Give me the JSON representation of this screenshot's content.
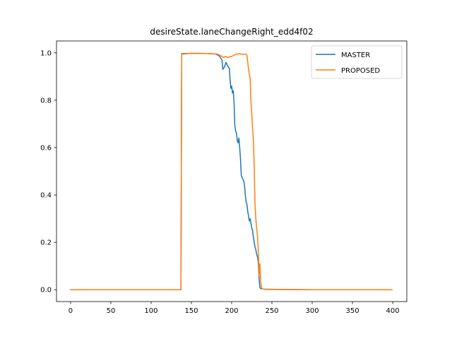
{
  "chart_data": {
    "type": "line",
    "title": "desireState.laneChangeRight_edd4f02",
    "xlabel": "",
    "ylabel": "",
    "xlim": [
      -17.5,
      417.5
    ],
    "ylim": [
      -0.05,
      1.05
    ],
    "xticks": [
      0,
      50,
      100,
      150,
      200,
      250,
      300,
      350,
      400
    ],
    "yticks": [
      0.0,
      0.2,
      0.4,
      0.6,
      0.8,
      1.0
    ],
    "xtick_labels": [
      "0",
      "50",
      "100",
      "150",
      "200",
      "250",
      "300",
      "350",
      "400"
    ],
    "ytick_labels": [
      "0.0",
      "0.2",
      "0.4",
      "0.6",
      "0.8",
      "1.0"
    ],
    "grid": false,
    "legend_position": "top-right",
    "series": [
      {
        "name": "MASTER",
        "color": "#1f77b4",
        "points": [
          [
            0,
            0.0
          ],
          [
            136,
            0.0
          ],
          [
            137,
            0.0
          ],
          [
            138,
            0.995
          ],
          [
            150,
            0.998
          ],
          [
            170,
            0.997
          ],
          [
            180,
            0.995
          ],
          [
            183,
            0.99
          ],
          [
            185,
            0.985
          ],
          [
            187,
            0.975
          ],
          [
            188,
            0.97
          ],
          [
            189,
            0.93
          ],
          [
            191,
            0.94
          ],
          [
            193,
            0.96
          ],
          [
            195,
            0.945
          ],
          [
            197,
            0.935
          ],
          [
            198,
            0.89
          ],
          [
            199,
            0.85
          ],
          [
            200,
            0.86
          ],
          [
            201,
            0.83
          ],
          [
            202,
            0.84
          ],
          [
            203,
            0.79
          ],
          [
            204,
            0.69
          ],
          [
            205,
            0.67
          ],
          [
            206,
            0.66
          ],
          [
            207,
            0.63
          ],
          [
            208,
            0.62
          ],
          [
            209,
            0.64
          ],
          [
            210,
            0.6
          ],
          [
            211,
            0.55
          ],
          [
            212,
            0.48
          ],
          [
            213,
            0.475
          ],
          [
            214,
            0.465
          ],
          [
            215,
            0.46
          ],
          [
            216,
            0.44
          ],
          [
            217,
            0.4
          ],
          [
            218,
            0.37
          ],
          [
            219,
            0.36
          ],
          [
            220,
            0.33
          ],
          [
            221,
            0.31
          ],
          [
            222,
            0.29
          ],
          [
            223,
            0.3
          ],
          [
            224,
            0.28
          ],
          [
            225,
            0.26
          ],
          [
            226,
            0.25
          ],
          [
            227,
            0.22
          ],
          [
            228,
            0.2
          ],
          [
            229,
            0.18
          ],
          [
            230,
            0.17
          ],
          [
            231,
            0.15
          ],
          [
            232,
            0.14
          ],
          [
            233,
            0.12
          ],
          [
            234,
            0.05
          ],
          [
            235,
            0.01
          ],
          [
            236,
            0.005
          ],
          [
            240,
            0.002
          ],
          [
            300,
            0.0
          ],
          [
            399,
            0.0
          ]
        ]
      },
      {
        "name": "PROPOSED",
        "color": "#ff7f0e",
        "points": [
          [
            0,
            0.0
          ],
          [
            136,
            0.0
          ],
          [
            137,
            0.0
          ],
          [
            138,
            0.997
          ],
          [
            150,
            0.998
          ],
          [
            170,
            0.997
          ],
          [
            182,
            0.995
          ],
          [
            185,
            0.99
          ],
          [
            188,
            0.985
          ],
          [
            190,
            0.98
          ],
          [
            192,
            0.985
          ],
          [
            195,
            0.98
          ],
          [
            200,
            0.985
          ],
          [
            203,
            0.99
          ],
          [
            206,
            0.995
          ],
          [
            210,
            0.996
          ],
          [
            214,
            0.993
          ],
          [
            217,
            0.995
          ],
          [
            219,
            0.99
          ],
          [
            220,
            0.96
          ],
          [
            221,
            0.93
          ],
          [
            222,
            0.91
          ],
          [
            223,
            0.89
          ],
          [
            224,
            0.79
          ],
          [
            225,
            0.74
          ],
          [
            226,
            0.68
          ],
          [
            227,
            0.63
          ],
          [
            228,
            0.52
          ],
          [
            229,
            0.36
          ],
          [
            230,
            0.3
          ],
          [
            231,
            0.26
          ],
          [
            232,
            0.23
          ],
          [
            233,
            0.17
          ],
          [
            234,
            0.06
          ],
          [
            235,
            0.11
          ],
          [
            236,
            0.04
          ],
          [
            237,
            0.01
          ],
          [
            238,
            0.003
          ],
          [
            245,
            0.001
          ],
          [
            300,
            0.0
          ],
          [
            399,
            0.0
          ]
        ]
      }
    ]
  }
}
